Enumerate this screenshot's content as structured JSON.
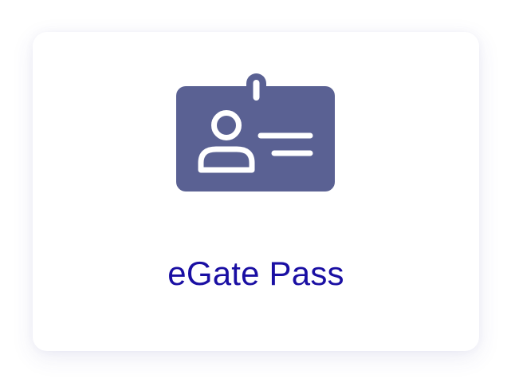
{
  "card": {
    "label": "eGate Pass",
    "icon": "id-badge-icon"
  },
  "colors": {
    "icon": "#5a6193",
    "label": "#1a0fa3",
    "card_background": "#ffffff"
  }
}
